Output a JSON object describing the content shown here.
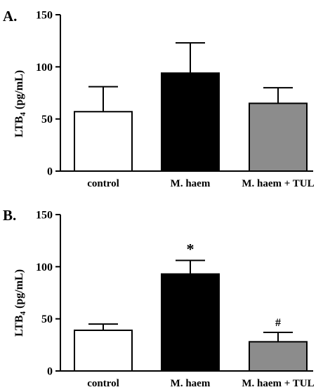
{
  "chart_data": [
    {
      "panel_label": "A.",
      "type": "bar",
      "categories": [
        "control",
        "M. haem",
        "M. haem + TUL"
      ],
      "values": [
        57,
        94,
        65
      ],
      "errors": [
        24,
        29,
        15
      ],
      "bar_colors": [
        "#ffffff",
        "#000000",
        "#8c8c8c"
      ],
      "annotations": [
        "",
        "",
        ""
      ],
      "ylabel_main": "LTB",
      "ylabel_sub": "4",
      "ylabel_unit": "(pg/mL)",
      "ylim": [
        0,
        150
      ],
      "yticks": [
        "0",
        "50",
        "100",
        "150"
      ],
      "yticks_values": [
        0,
        50,
        100,
        150
      ],
      "grid": false
    },
    {
      "panel_label": "B.",
      "type": "bar",
      "categories": [
        "control",
        "M. haem",
        "M. haem + TUL"
      ],
      "values": [
        39,
        93,
        28
      ],
      "errors": [
        6,
        13,
        9
      ],
      "bar_colors": [
        "#ffffff",
        "#000000",
        "#8c8c8c"
      ],
      "annotations": [
        "",
        "*",
        "#"
      ],
      "ylabel_main": "LTB",
      "ylabel_sub": "4",
      "ylabel_unit": "(pg/mL)",
      "ylim": [
        0,
        150
      ],
      "yticks": [
        "0",
        "50",
        "100",
        "150"
      ],
      "yticks_values": [
        0,
        50,
        100,
        150
      ],
      "grid": false
    }
  ]
}
